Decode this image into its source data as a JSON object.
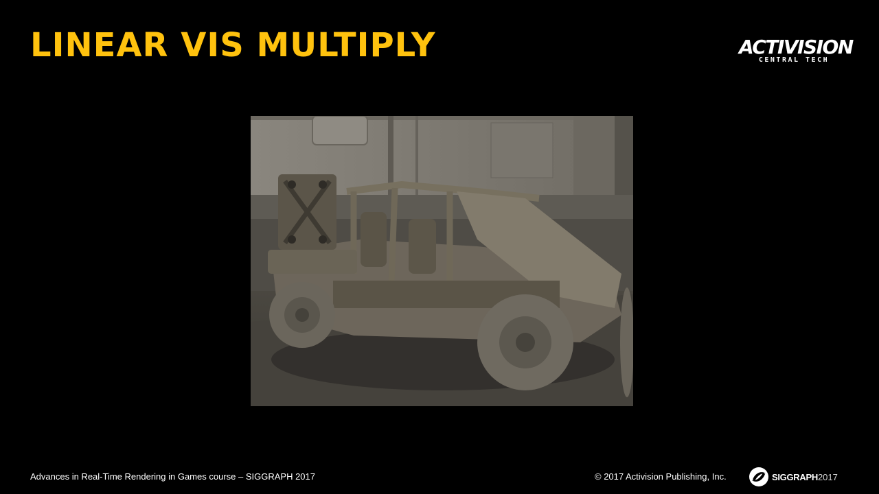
{
  "slide": {
    "title": "LINEAR VIS MULTIPLY"
  },
  "logo": {
    "brand": "ACTIVISION",
    "subtitle": "CENTRAL TECH"
  },
  "footer": {
    "course": "Advances in Real-Time Rendering in Games course – SIGGRAPH 2017",
    "copyright": "© 2017 Activision Publishing, Inc.",
    "siggraph_name": "SIGGRAPH",
    "siggraph_year": "2017"
  },
  "colors": {
    "background": "#000000",
    "title": "#FFC20E",
    "text": "#FFFFFF"
  },
  "icons": {
    "render_image": "vehicle-render-image",
    "siggraph_logo": "siggraph-logo-icon"
  }
}
